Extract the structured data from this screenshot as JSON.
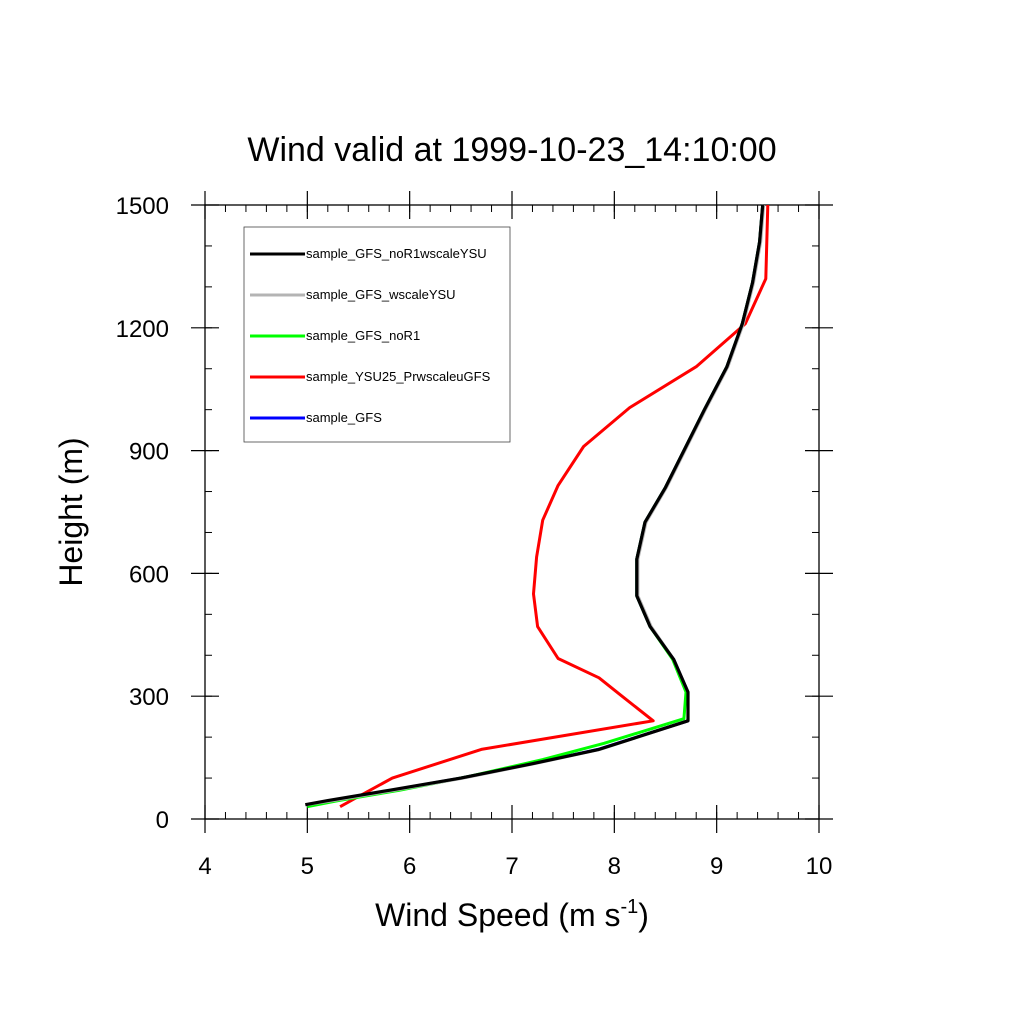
{
  "chart_data": {
    "type": "line",
    "title": "Wind valid at 1999-10-23_14:10:00",
    "xlabel": "Wind Speed (m s",
    "xlabel_superscript": "-1",
    "xlabel_suffix": ")",
    "ylabel": "Height (m)",
    "xlim": [
      4,
      10
    ],
    "ylim": [
      0,
      1500
    ],
    "xticks": [
      4,
      5,
      6,
      7,
      8,
      9,
      10
    ],
    "yticks": [
      0,
      300,
      600,
      900,
      1200,
      1500
    ],
    "xtick_labels": [
      "4",
      "5",
      "6",
      "7",
      "8",
      "9",
      "10"
    ],
    "ytick_labels": [
      "0",
      "300",
      "600",
      "900",
      "1200",
      "1500"
    ],
    "grid": false,
    "legend_position": "top-left",
    "series": [
      {
        "name": "sample_GFS_noR1wscaleYSU",
        "color": "#000000",
        "points": [
          [
            4.98,
            35
          ],
          [
            5.2,
            45
          ],
          [
            5.8,
            70
          ],
          [
            6.5,
            100
          ],
          [
            7.2,
            135
          ],
          [
            7.85,
            170
          ],
          [
            8.72,
            240
          ],
          [
            8.72,
            310
          ],
          [
            8.58,
            390
          ],
          [
            8.35,
            470
          ],
          [
            8.22,
            545
          ],
          [
            8.22,
            635
          ],
          [
            8.3,
            725
          ],
          [
            8.5,
            810
          ],
          [
            8.88,
            1000
          ],
          [
            9.1,
            1105
          ],
          [
            9.25,
            1210
          ],
          [
            9.35,
            1310
          ],
          [
            9.42,
            1410
          ],
          [
            9.45,
            1500
          ]
        ]
      },
      {
        "name": "sample_GFS_wscaleYSU",
        "color": "#b4b4b4",
        "points": [
          [
            5.0,
            35
          ],
          [
            5.25,
            45
          ],
          [
            5.85,
            70
          ],
          [
            6.52,
            100
          ],
          [
            7.22,
            135
          ],
          [
            7.86,
            170
          ],
          [
            8.72,
            240
          ],
          [
            8.72,
            310
          ],
          [
            8.58,
            390
          ],
          [
            8.36,
            470
          ],
          [
            8.23,
            545
          ],
          [
            8.23,
            635
          ],
          [
            8.31,
            725
          ],
          [
            8.51,
            810
          ],
          [
            8.89,
            1000
          ],
          [
            9.11,
            1105
          ],
          [
            9.26,
            1210
          ],
          [
            9.36,
            1310
          ],
          [
            9.43,
            1410
          ],
          [
            9.46,
            1500
          ]
        ]
      },
      {
        "name": "sample_GFS_noR1",
        "color": "#00ff00",
        "points": [
          [
            5.0,
            30
          ],
          [
            5.3,
            45
          ],
          [
            5.9,
            70
          ],
          [
            6.6,
            105
          ],
          [
            7.3,
            145
          ],
          [
            7.9,
            185
          ],
          [
            8.68,
            245
          ],
          [
            8.7,
            310
          ],
          [
            8.57,
            390
          ],
          [
            8.35,
            470
          ],
          [
            8.22,
            545
          ],
          [
            8.22,
            635
          ],
          [
            8.3,
            725
          ],
          [
            8.5,
            810
          ],
          [
            8.88,
            1000
          ],
          [
            9.1,
            1105
          ],
          [
            9.25,
            1210
          ],
          [
            9.35,
            1310
          ],
          [
            9.42,
            1410
          ],
          [
            9.45,
            1500
          ]
        ]
      },
      {
        "name": "sample_YSU25_PrwscaleuGFS",
        "color": "#ff0000",
        "points": [
          [
            5.32,
            30
          ],
          [
            5.5,
            55
          ],
          [
            5.83,
            100
          ],
          [
            6.7,
            170
          ],
          [
            8.38,
            240
          ],
          [
            8.05,
            305
          ],
          [
            7.85,
            345
          ],
          [
            7.45,
            392
          ],
          [
            7.25,
            470
          ],
          [
            7.21,
            550
          ],
          [
            7.24,
            640
          ],
          [
            7.3,
            730
          ],
          [
            7.45,
            815
          ],
          [
            7.7,
            910
          ],
          [
            8.15,
            1005
          ],
          [
            8.8,
            1105
          ],
          [
            9.28,
            1210
          ],
          [
            9.48,
            1320
          ],
          [
            9.5,
            1500
          ]
        ]
      },
      {
        "name": "sample_GFS",
        "color": "#0000ff",
        "points": [
          [
            5.0,
            35
          ],
          [
            5.22,
            45
          ],
          [
            5.82,
            70
          ],
          [
            6.5,
            100
          ],
          [
            7.2,
            135
          ],
          [
            7.84,
            170
          ],
          [
            8.72,
            240
          ],
          [
            8.72,
            310
          ],
          [
            8.58,
            390
          ],
          [
            8.35,
            470
          ],
          [
            8.22,
            545
          ],
          [
            8.22,
            635
          ],
          [
            8.3,
            725
          ],
          [
            8.5,
            810
          ],
          [
            8.88,
            1000
          ],
          [
            9.1,
            1105
          ],
          [
            9.25,
            1210
          ],
          [
            9.35,
            1310
          ],
          [
            9.42,
            1410
          ],
          [
            9.45,
            1500
          ]
        ]
      }
    ]
  }
}
